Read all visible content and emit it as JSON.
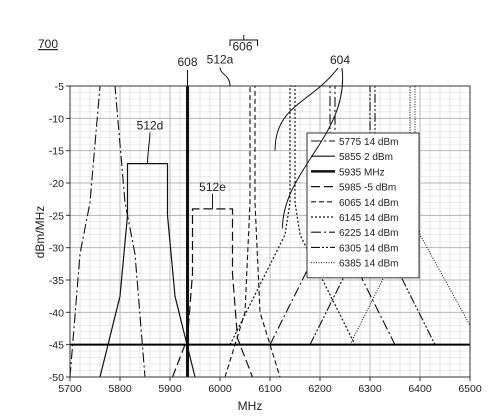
{
  "figure_label": "700",
  "chart_data": {
    "type": "line",
    "xlabel": "MHz",
    "ylabel": "dBm/MHz",
    "xlim": [
      5700,
      6500
    ],
    "ylim": [
      -50,
      -5
    ],
    "xticks": [
      5700,
      5800,
      5900,
      6000,
      6100,
      6200,
      6300,
      6400,
      6500
    ],
    "yticks": [
      -5,
      -10,
      -15,
      -20,
      -25,
      -30,
      -35,
      -40,
      -45,
      -50
    ],
    "grid": true,
    "legend_position": "right-middle",
    "limit_line": {
      "y": -45
    },
    "series": [
      {
        "name": "5775 14 dBm",
        "style": "dashdot",
        "points": [
          [
            5700,
            -50
          ],
          [
            5720,
            -31
          ],
          [
            5740,
            -23
          ],
          [
            5760,
            -5
          ],
          [
            5790,
            -5
          ],
          [
            5810,
            -23
          ],
          [
            5830,
            -31
          ],
          [
            5850,
            -50
          ]
        ]
      },
      {
        "name": "5855 2 dBm",
        "style": "solid",
        "points": [
          [
            5760,
            -50
          ],
          [
            5800,
            -37.5
          ],
          [
            5815,
            -25
          ],
          [
            5815,
            -17
          ],
          [
            5895,
            -17
          ],
          [
            5895,
            -25
          ],
          [
            5910,
            -37.5
          ],
          [
            5950,
            -50
          ]
        ]
      },
      {
        "name": "5935 MHz",
        "style": "bold",
        "points": [
          [
            5935,
            -50
          ],
          [
            5935,
            -5
          ]
        ]
      },
      {
        "name": "5985 -5 dBm",
        "style": "longdash",
        "points": [
          [
            5905,
            -50
          ],
          [
            5935,
            -44
          ],
          [
            5945,
            -34
          ],
          [
            5945,
            -24
          ],
          [
            6025,
            -24
          ],
          [
            6025,
            -34
          ],
          [
            6035,
            -44
          ],
          [
            6065,
            -50
          ]
        ]
      },
      {
        "name": "6065 14 dBm",
        "style": "dash",
        "points": [
          [
            6010,
            -50
          ],
          [
            6050,
            -40
          ],
          [
            6060,
            -23
          ],
          [
            6060,
            -5
          ],
          [
            6070,
            -5
          ],
          [
            6070,
            -23
          ],
          [
            6080,
            -40
          ],
          [
            6120,
            -50
          ]
        ]
      },
      {
        "name": "6145 14 dBm",
        "style": "dot",
        "points": [
          [
            6020,
            -45
          ],
          [
            6130,
            -28
          ],
          [
            6140,
            -23
          ],
          [
            6140,
            -5
          ],
          [
            6150,
            -5
          ],
          [
            6150,
            -23
          ],
          [
            6160,
            -28
          ],
          [
            6270,
            -45
          ]
        ]
      },
      {
        "name": "6225 14 dBm",
        "style": "dashdot",
        "points": [
          [
            6100,
            -45
          ],
          [
            6210,
            -28
          ],
          [
            6220,
            -23
          ],
          [
            6220,
            -5
          ],
          [
            6230,
            -5
          ],
          [
            6230,
            -23
          ],
          [
            6240,
            -28
          ],
          [
            6350,
            -45
          ]
        ]
      },
      {
        "name": "6305 14 dBm",
        "style": "dashdotdot",
        "points": [
          [
            6180,
            -45
          ],
          [
            6290,
            -28
          ],
          [
            6300,
            -23
          ],
          [
            6300,
            -5
          ],
          [
            6310,
            -5
          ],
          [
            6310,
            -23
          ],
          [
            6320,
            -28
          ],
          [
            6430,
            -45
          ]
        ]
      },
      {
        "name": "6385 14 dBm",
        "style": "fineDot",
        "points": [
          [
            6260,
            -45
          ],
          [
            6370,
            -28
          ],
          [
            6380,
            -23
          ],
          [
            6380,
            -5
          ],
          [
            6390,
            -5
          ],
          [
            6390,
            -23
          ],
          [
            6400,
            -28
          ],
          [
            6500,
            -42
          ]
        ]
      }
    ],
    "annotations": [
      {
        "label": "512a",
        "target": [
          6020,
          -5
        ],
        "label_at": [
          6000,
          -1.5
        ]
      },
      {
        "label": "606",
        "target": [
          6045,
          -2
        ],
        "label_at": [
          6045,
          0.5
        ]
      },
      {
        "label": "608",
        "target": [
          5935,
          -5
        ],
        "label_at": [
          5935,
          -1.9
        ]
      },
      {
        "label": "604",
        "target": [
          6110,
          -5
        ],
        "label_at": [
          6240,
          -1.6
        ]
      },
      {
        "label": "512d",
        "target": [
          5855,
          -17
        ],
        "label_at": [
          5860,
          -11.7
        ]
      },
      {
        "label": "512e",
        "target": [
          5985,
          -24
        ],
        "label_at": [
          5985,
          -21.2
        ]
      }
    ]
  }
}
